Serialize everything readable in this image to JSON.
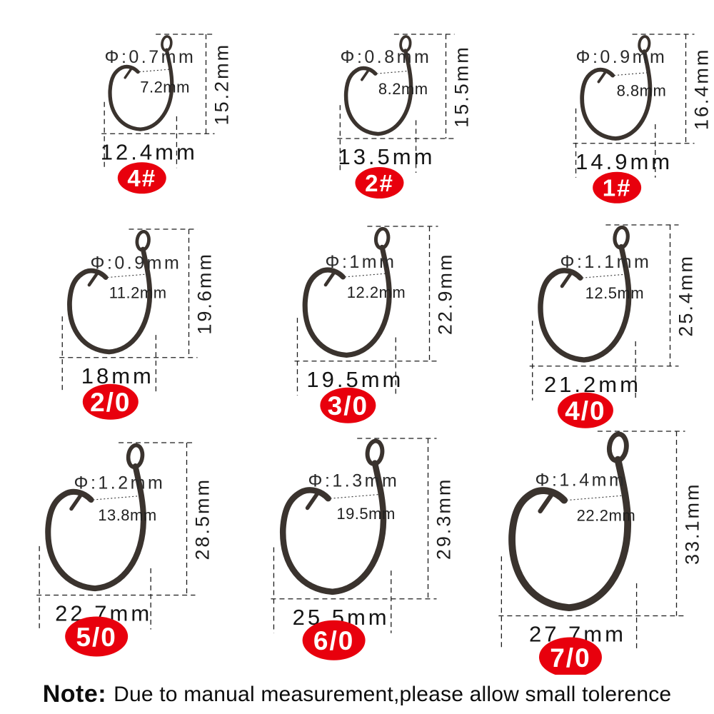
{
  "colors": {
    "badge": "#e8000d",
    "badge_text": "#ffffff",
    "hook": "#3a332e",
    "text": "#222222",
    "background": "#ffffff"
  },
  "note": {
    "prefix": "Note:",
    "text": "Due to manual measurement,please allow small tolerence"
  },
  "hooks": [
    {
      "size": "4#",
      "diameter": "Φ:0.7mm",
      "gap": "7.2mm",
      "height": "15.2mm",
      "width": "12.4mm"
    },
    {
      "size": "2#",
      "diameter": "Φ:0.8mm",
      "gap": "8.2mm",
      "height": "15.5mm",
      "width": "13.5mm"
    },
    {
      "size": "1#",
      "diameter": "Φ:0.9mm",
      "gap": "8.8mm",
      "height": "16.4mm",
      "width": "14.9mm"
    },
    {
      "size": "2/0",
      "diameter": "Φ:0.9mm",
      "gap": "11.2mm",
      "height": "19.6mm",
      "width": "18mm"
    },
    {
      "size": "3/0",
      "diameter": "Φ:1mm",
      "gap": "12.2mm",
      "height": "22.9mm",
      "width": "19.5mm"
    },
    {
      "size": "4/0",
      "diameter": "Φ:1.1mm",
      "gap": "12.5mm",
      "height": "25.4mm",
      "width": "21.2mm"
    },
    {
      "size": "5/0",
      "diameter": "Φ:1.2mm",
      "gap": "13.8mm",
      "height": "28.5mm",
      "width": "22.7mm"
    },
    {
      "size": "6/0",
      "diameter": "Φ:1.3mm",
      "gap": "19.5mm",
      "height": "29.3mm",
      "width": "25.5mm"
    },
    {
      "size": "7/0",
      "diameter": "Φ:1.4mm",
      "gap": "22.2mm",
      "height": "33.1mm",
      "width": "27.7mm"
    }
  ]
}
